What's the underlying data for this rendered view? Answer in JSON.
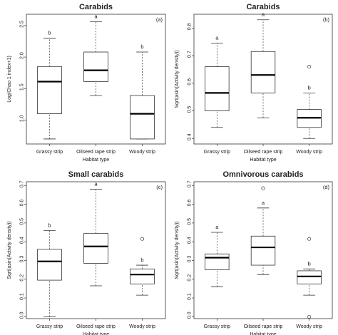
{
  "chart_data": [
    {
      "type": "boxplot",
      "title": "Carabids",
      "panel_label": "(a)",
      "xlabel": "Habitat type",
      "ylabel": "Log(Chao 1 index+1)",
      "categories": [
        "Grassy strip",
        "Oilseed rape strip",
        "Woody strip"
      ],
      "ylim": [
        0.62,
        2.68
      ],
      "yticks": [
        "1.0",
        "1.5",
        "2.0",
        "2.5"
      ],
      "boxes": [
        {
          "min": 0.7,
          "q1": 1.1,
          "median": 1.61,
          "q3": 1.85,
          "max": 2.3,
          "letter": "b",
          "outliers": []
        },
        {
          "min": 1.39,
          "q1": 1.61,
          "median": 1.79,
          "q3": 2.08,
          "max": 2.56,
          "letter": "a",
          "outliers": []
        },
        {
          "min": 0.7,
          "q1": 0.7,
          "median": 1.1,
          "q3": 1.39,
          "max": 2.08,
          "letter": "b",
          "outliers": []
        }
      ]
    },
    {
      "type": "boxplot",
      "title": "Carabids",
      "panel_label": "(b)",
      "xlabel": "Habitat type",
      "ylabel": "Sqrt(asin(Activity density))",
      "categories": [
        "Grassy strip",
        "Oilseed rape strip",
        "Woody strip"
      ],
      "ylim": [
        0.38,
        0.85
      ],
      "yticks": [
        "0.4",
        "0.5",
        "0.6",
        "0.7",
        "0.8"
      ],
      "boxes": [
        {
          "min": 0.44,
          "q1": 0.5,
          "median": 0.565,
          "q3": 0.66,
          "max": 0.745,
          "letter": "a",
          "outliers": []
        },
        {
          "min": 0.475,
          "q1": 0.565,
          "median": 0.63,
          "q3": 0.715,
          "max": 0.83,
          "letter": "a",
          "outliers": []
        },
        {
          "min": 0.4,
          "q1": 0.44,
          "median": 0.475,
          "q3": 0.505,
          "max": 0.565,
          "letter": "b",
          "outliers": [
            0.66
          ]
        }
      ]
    },
    {
      "type": "boxplot",
      "title": "Small carabids",
      "panel_label": "(c)",
      "xlabel": "Habitat type",
      "ylabel": "Sqrt(asin(Activity density))",
      "categories": [
        "Grassy strip",
        "Oilseed rape strip",
        "Woody strip"
      ],
      "ylim": [
        -0.01,
        0.72
      ],
      "yticks": [
        "0.0",
        "0.1",
        "0.2",
        "0.3",
        "0.4",
        "0.5",
        "0.6",
        "0.7"
      ],
      "boxes": [
        {
          "min": 0.0,
          "q1": 0.195,
          "median": 0.295,
          "q3": 0.36,
          "max": 0.46,
          "letter": "b",
          "outliers": []
        },
        {
          "min": 0.165,
          "q1": 0.285,
          "median": 0.375,
          "q3": 0.445,
          "max": 0.68,
          "letter": "a",
          "outliers": []
        },
        {
          "min": 0.115,
          "q1": 0.175,
          "median": 0.225,
          "q3": 0.255,
          "max": 0.275,
          "letter": "b",
          "outliers": [
            0.415
          ]
        }
      ]
    },
    {
      "type": "boxplot",
      "title": "Omnivorous carabids",
      "panel_label": "(d)",
      "xlabel": "Habitat type",
      "ylabel": "Sqrt(asin(Activity density))",
      "categories": [
        "Grassy strip",
        "Oilseed rape strip",
        "Woody strip"
      ],
      "ylim": [
        -0.01,
        0.72
      ],
      "yticks": [
        "0.0",
        "0.1",
        "0.2",
        "0.3",
        "0.4",
        "0.5",
        "0.6",
        "0.7"
      ],
      "boxes": [
        {
          "min": 0.16,
          "q1": 0.25,
          "median": 0.315,
          "q3": 0.335,
          "max": 0.45,
          "letter": "a",
          "outliers": []
        },
        {
          "min": 0.225,
          "q1": 0.275,
          "median": 0.37,
          "q3": 0.43,
          "max": 0.58,
          "letter": "a",
          "outliers": [
            0.685
          ]
        },
        {
          "min": 0.115,
          "q1": 0.175,
          "median": 0.215,
          "q3": 0.245,
          "max": 0.255,
          "letter": "b",
          "outliers": [
            0.0,
            0.415
          ]
        }
      ]
    }
  ]
}
